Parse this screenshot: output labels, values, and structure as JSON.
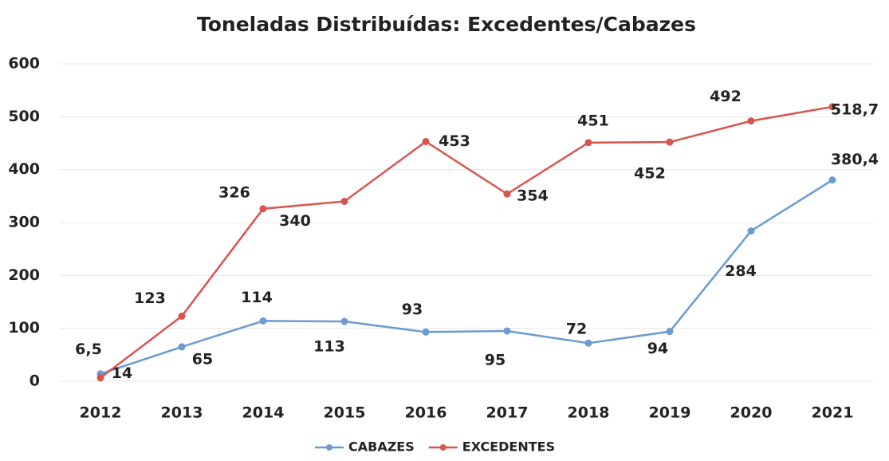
{
  "chart_data": {
    "type": "line",
    "title": "Toneladas Distribuídas: Excedentes/Cabazes",
    "categories": [
      "2012",
      "2013",
      "2014",
      "2015",
      "2016",
      "2017",
      "2018",
      "2019",
      "2020",
      "2021"
    ],
    "series": [
      {
        "name": "CABAZES",
        "color": "#6b9bd1",
        "values": [
          14,
          65,
          114,
          113,
          93,
          95,
          72,
          94,
          284,
          380.4
        ],
        "value_labels": [
          "14",
          "65",
          "114",
          "113",
          "93",
          "95",
          "72",
          "94",
          "284",
          "380,4"
        ]
      },
      {
        "name": "EXCEDENTES",
        "color": "#d9534f",
        "values": [
          6.5,
          123,
          326,
          340,
          453,
          354,
          451,
          452,
          492,
          518.7
        ],
        "value_labels": [
          "6,5",
          "123",
          "326",
          "340",
          "453",
          "354",
          "451",
          "452",
          "492",
          "518,7"
        ]
      }
    ],
    "ylim": [
      0,
      600
    ],
    "yticks": [
      0,
      100,
      200,
      300,
      400,
      500,
      600
    ],
    "grid": true,
    "legend": "bottom"
  }
}
